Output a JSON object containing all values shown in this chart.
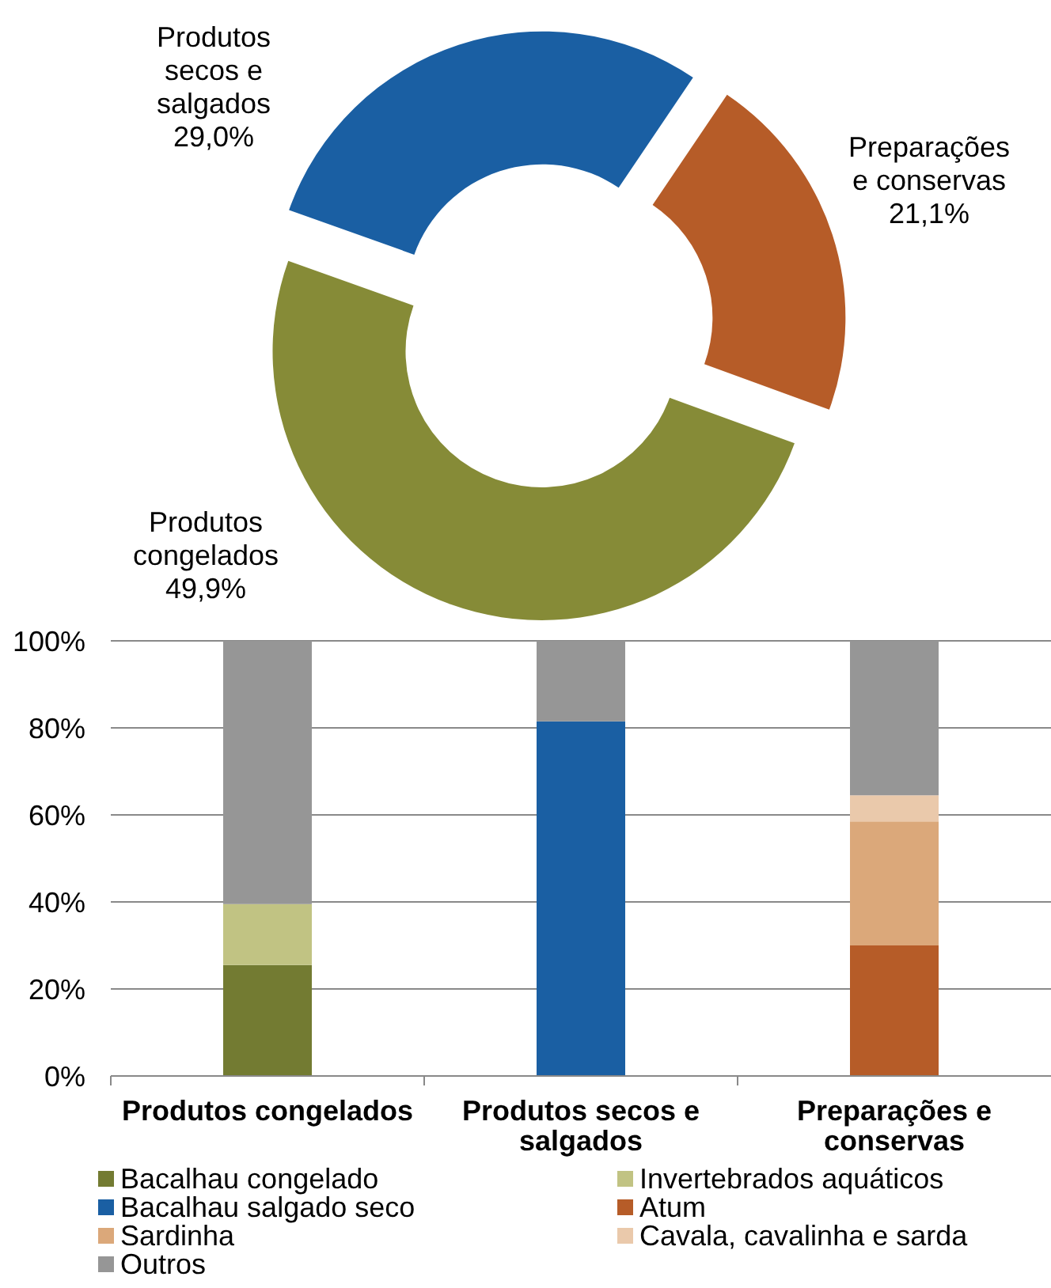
{
  "chart_data": [
    {
      "type": "donut",
      "categories": [
        "Produtos congelados",
        "Produtos secos e salgados",
        "Preparações e conservas"
      ],
      "values": [
        49.9,
        29.0,
        21.1
      ],
      "colors": [
        "#868b37",
        "#1a5fa3",
        "#b65c28"
      ],
      "value_labels": [
        "49,9%",
        "29,0%",
        "21,1%"
      ]
    },
    {
      "type": "bar",
      "stacked": true,
      "categories": [
        "Produtos congelados",
        "Produtos secos e salgados",
        "Preparações e conservas"
      ],
      "series": [
        {
          "name": "Bacalhau congelado",
          "color": "#737b32",
          "values": [
            25.5,
            null,
            null
          ]
        },
        {
          "name": "Invertebrados aquáticos",
          "color": "#c1c383",
          "values": [
            14,
            null,
            null
          ]
        },
        {
          "name": "Bacalhau salgado seco",
          "color": "#1a5fa3",
          "values": [
            null,
            81.5,
            null
          ]
        },
        {
          "name": "Atum",
          "color": "#b65c28",
          "values": [
            null,
            null,
            30
          ]
        },
        {
          "name": "Sardinha",
          "color": "#dba87a",
          "values": [
            null,
            null,
            28.5
          ]
        },
        {
          "name": "Cavala, cavalinha e sarda",
          "color": "#eac9ab",
          "values": [
            null,
            null,
            6
          ]
        },
        {
          "name": "Outros",
          "color": "#969696",
          "values": [
            60.5,
            18.5,
            35.5
          ]
        }
      ],
      "ylim": [
        0,
        100
      ],
      "yticks": [
        {
          "value": 0,
          "label": "0%"
        },
        {
          "value": 20,
          "label": "20%"
        },
        {
          "value": 40,
          "label": "40%"
        },
        {
          "value": 60,
          "label": "60%"
        },
        {
          "value": 80,
          "label": "80%"
        },
        {
          "value": 100,
          "label": "100%"
        }
      ],
      "grid": "y",
      "legend": "bottom"
    }
  ]
}
